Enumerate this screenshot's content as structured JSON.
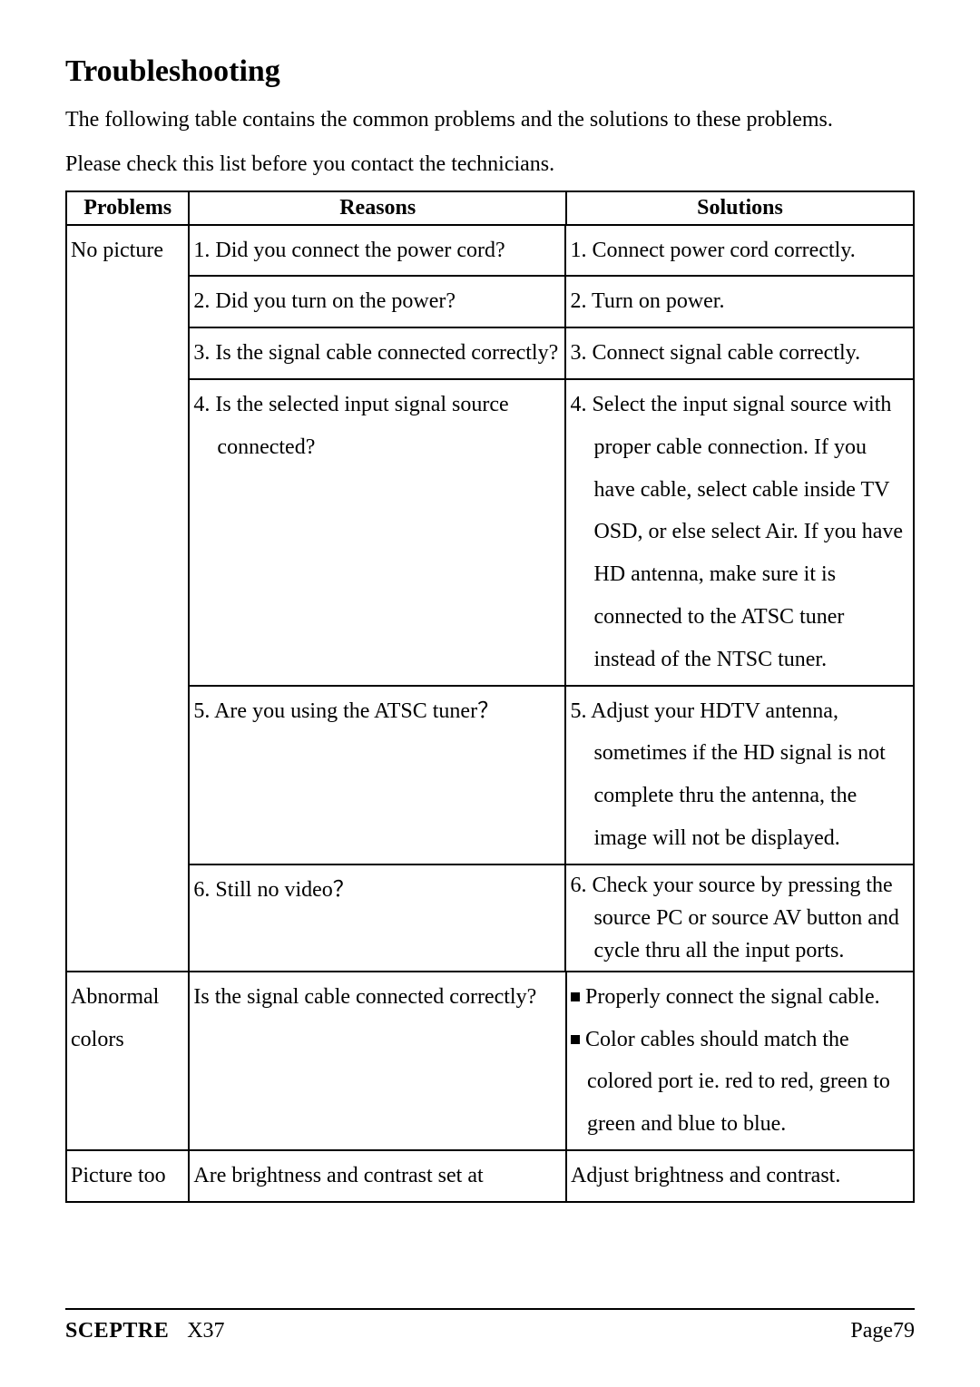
{
  "title": "Troubleshooting",
  "intro_line1": "The following table contains the common problems and the solutions to these problems.",
  "intro_line2": "Please check this list before you contact the technicians.",
  "headers": {
    "col1": "Problems",
    "col2": "Reasons",
    "col3": "Solutions"
  },
  "row1": {
    "problem": "No picture",
    "r1_reason": "1. Did you connect the power cord?",
    "r1_solution": "1. Connect power cord correctly.",
    "r2_reason": "2. Did you turn on the power?",
    "r2_solution": "2. Turn on power.",
    "r3_reason": "3. Is the signal cable connected correctly?",
    "r3_solution": "3. Connect signal cable correctly.",
    "r4_reason": "4. Is the selected input signal source connected?",
    "r4_solution": "4. Select the input signal source with proper cable connection. If you have cable, select cable inside TV OSD, or else select Air. If you have HD antenna, make sure it is connected to the ATSC tuner instead of the NTSC tuner.",
    "r5_reason": "5. Are you using the ATSC tuner？",
    "r5_solution": "5. Adjust your HDTV antenna, sometimes if the HD signal is not complete thru the antenna, the image will not be displayed.",
    "r6_reason": "6. Still no video？",
    "r6_solution": "6. Check your source by pressing the source PC or source AV button and cycle thru all the input ports."
  },
  "row2": {
    "problem": "Abnormal colors",
    "reason": "Is the signal cable connected correctly?",
    "solution_b1": "Properly connect the signal cable.",
    "solution_b2": "Color cables should match the colored port ie. red to red, green to green and blue to blue."
  },
  "row3": {
    "problem": "Picture too",
    "reason": "Are brightness and contrast set at",
    "solution": "Adjust brightness and contrast."
  },
  "footer": {
    "brand": "SCEPTRE",
    "model": "X37",
    "page": "Page79"
  },
  "colors": {
    "text": "#000000",
    "background": "#ffffff",
    "border": "#000000"
  },
  "typography": {
    "title_fontsize": 34,
    "body_fontsize": 24,
    "font_family": "Times New Roman"
  }
}
